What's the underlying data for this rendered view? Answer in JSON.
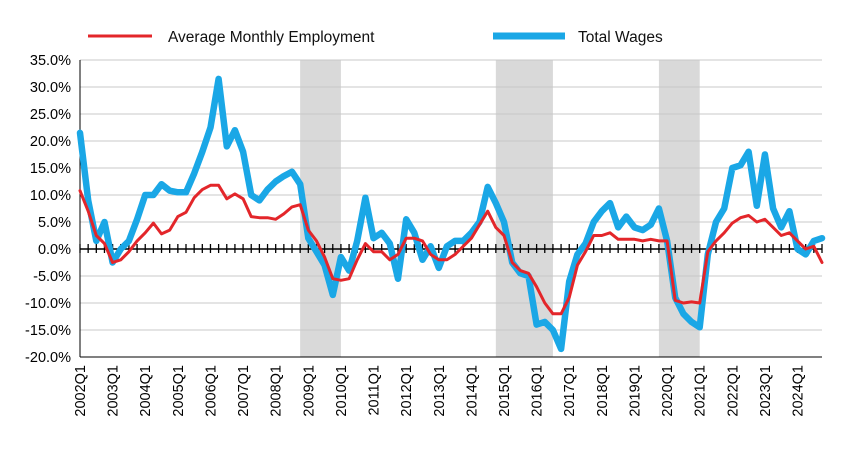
{
  "chart_data": {
    "type": "line",
    "title": "",
    "xlabel": "",
    "ylabel": "",
    "x_tick_labels": [
      "2002Q1",
      "2003Q1",
      "2004Q1",
      "2005Q1",
      "2006Q1",
      "2007Q1",
      "2008Q1",
      "2009Q1",
      "2010Q1",
      "2011Q1",
      "2012Q1",
      "2013Q1",
      "2014Q1",
      "2015Q1",
      "2016Q1",
      "2017Q1",
      "2018Q1",
      "2019Q1",
      "2020Q1",
      "2021Q1",
      "2022Q1",
      "2023Q1",
      "2024Q1"
    ],
    "y_tick_labels": [
      "35.0%",
      "30.0%",
      "25.0%",
      "20.0%",
      "15.0%",
      "10.0%",
      "5.0%",
      "0.0%",
      "-5.0%",
      "-10.0%",
      "-15.0%",
      "-20.0%"
    ],
    "ylim": [
      -20,
      35
    ],
    "grid": "horizontal",
    "legend_position": "top",
    "shaded_periods": [
      {
        "start": "2008Q4",
        "end": "2010Q1"
      },
      {
        "start": "2014Q4",
        "end": "2016Q3"
      },
      {
        "start": "2019Q4",
        "end": "2021Q1"
      }
    ],
    "series": [
      {
        "name": "Average Monthly Employment",
        "color": "#e3262a",
        "values": [
          {
            "x": "2002Q1",
            "y": 10.8
          },
          {
            "x": "2002Q2",
            "y": 7.0
          },
          {
            "x": "2002Q3",
            "y": 2.5
          },
          {
            "x": "2002Q4",
            "y": 1.0
          },
          {
            "x": "2003Q1",
            "y": -2.5
          },
          {
            "x": "2003Q2",
            "y": -2.0
          },
          {
            "x": "2003Q3",
            "y": -0.5
          },
          {
            "x": "2003Q4",
            "y": 1.5
          },
          {
            "x": "2004Q1",
            "y": 3.0
          },
          {
            "x": "2004Q2",
            "y": 4.8
          },
          {
            "x": "2004Q3",
            "y": 2.8
          },
          {
            "x": "2004Q4",
            "y": 3.5
          },
          {
            "x": "2005Q1",
            "y": 6.0
          },
          {
            "x": "2005Q2",
            "y": 6.8
          },
          {
            "x": "2005Q3",
            "y": 9.5
          },
          {
            "x": "2005Q4",
            "y": 11.0
          },
          {
            "x": "2006Q1",
            "y": 11.8
          },
          {
            "x": "2006Q2",
            "y": 11.8
          },
          {
            "x": "2006Q3",
            "y": 9.3
          },
          {
            "x": "2006Q4",
            "y": 10.2
          },
          {
            "x": "2007Q1",
            "y": 9.3
          },
          {
            "x": "2007Q2",
            "y": 6.0
          },
          {
            "x": "2007Q3",
            "y": 5.8
          },
          {
            "x": "2007Q4",
            "y": 5.8
          },
          {
            "x": "2008Q1",
            "y": 5.5
          },
          {
            "x": "2008Q2",
            "y": 6.5
          },
          {
            "x": "2008Q3",
            "y": 7.8
          },
          {
            "x": "2008Q4",
            "y": 8.2
          },
          {
            "x": "2009Q1",
            "y": 3.5
          },
          {
            "x": "2009Q2",
            "y": 1.5
          },
          {
            "x": "2009Q3",
            "y": -1.5
          },
          {
            "x": "2009Q4",
            "y": -5.5
          },
          {
            "x": "2010Q1",
            "y": -5.8
          },
          {
            "x": "2010Q2",
            "y": -5.5
          },
          {
            "x": "2010Q3",
            "y": -2.0
          },
          {
            "x": "2010Q4",
            "y": 1.0
          },
          {
            "x": "2011Q1",
            "y": -0.5
          },
          {
            "x": "2011Q2",
            "y": -0.5
          },
          {
            "x": "2011Q3",
            "y": -2.0
          },
          {
            "x": "2011Q4",
            "y": -1.0
          },
          {
            "x": "2012Q1",
            "y": 2.0
          },
          {
            "x": "2012Q2",
            "y": 2.0
          },
          {
            "x": "2012Q3",
            "y": 1.5
          },
          {
            "x": "2012Q4",
            "y": -1.0
          },
          {
            "x": "2013Q1",
            "y": -2.0
          },
          {
            "x": "2013Q2",
            "y": -2.0
          },
          {
            "x": "2013Q3",
            "y": -1.0
          },
          {
            "x": "2013Q4",
            "y": 0.5
          },
          {
            "x": "2014Q1",
            "y": 2.0
          },
          {
            "x": "2014Q2",
            "y": 4.5
          },
          {
            "x": "2014Q3",
            "y": 7.0
          },
          {
            "x": "2014Q4",
            "y": 4.0
          },
          {
            "x": "2015Q1",
            "y": 2.5
          },
          {
            "x": "2015Q2",
            "y": -2.5
          },
          {
            "x": "2015Q3",
            "y": -4.0
          },
          {
            "x": "2015Q4",
            "y": -4.5
          },
          {
            "x": "2016Q1",
            "y": -7.0
          },
          {
            "x": "2016Q2",
            "y": -10.0
          },
          {
            "x": "2016Q3",
            "y": -12.0
          },
          {
            "x": "2016Q4",
            "y": -12.0
          },
          {
            "x": "2017Q1",
            "y": -9.0
          },
          {
            "x": "2017Q2",
            "y": -3.0
          },
          {
            "x": "2017Q3",
            "y": -0.5
          },
          {
            "x": "2017Q4",
            "y": 2.5
          },
          {
            "x": "2018Q1",
            "y": 2.5
          },
          {
            "x": "2018Q2",
            "y": 3.0
          },
          {
            "x": "2018Q3",
            "y": 1.8
          },
          {
            "x": "2018Q4",
            "y": 1.8
          },
          {
            "x": "2019Q1",
            "y": 1.8
          },
          {
            "x": "2019Q2",
            "y": 1.5
          },
          {
            "x": "2019Q3",
            "y": 1.8
          },
          {
            "x": "2019Q4",
            "y": 1.5
          },
          {
            "x": "2020Q1",
            "y": 1.5
          },
          {
            "x": "2020Q2",
            "y": -9.5
          },
          {
            "x": "2020Q3",
            "y": -10.0
          },
          {
            "x": "2020Q4",
            "y": -9.8
          },
          {
            "x": "2021Q1",
            "y": -10.0
          },
          {
            "x": "2021Q2",
            "y": -0.5
          },
          {
            "x": "2021Q3",
            "y": 1.5
          },
          {
            "x": "2021Q4",
            "y": 3.0
          },
          {
            "x": "2022Q1",
            "y": 4.8
          },
          {
            "x": "2022Q2",
            "y": 5.8
          },
          {
            "x": "2022Q3",
            "y": 6.2
          },
          {
            "x": "2022Q4",
            "y": 5.0
          },
          {
            "x": "2023Q1",
            "y": 5.5
          },
          {
            "x": "2023Q2",
            "y": 4.0
          },
          {
            "x": "2023Q3",
            "y": 2.5
          },
          {
            "x": "2023Q4",
            "y": 3.0
          },
          {
            "x": "2024Q1",
            "y": 1.5
          },
          {
            "x": "2024Q2",
            "y": 0.0
          },
          {
            "x": "2024Q3",
            "y": 0.5
          },
          {
            "x": "2024Q4",
            "y": -2.5
          }
        ]
      },
      {
        "name": "Total Wages",
        "color": "#1aa7e6",
        "values": [
          {
            "x": "2002Q1",
            "y": 21.5
          },
          {
            "x": "2002Q2",
            "y": 9.0
          },
          {
            "x": "2002Q3",
            "y": 1.5
          },
          {
            "x": "2002Q4",
            "y": 5.0
          },
          {
            "x": "2003Q1",
            "y": -2.5
          },
          {
            "x": "2003Q2",
            "y": 0.0
          },
          {
            "x": "2003Q3",
            "y": 1.5
          },
          {
            "x": "2003Q4",
            "y": 5.5
          },
          {
            "x": "2004Q1",
            "y": 10.0
          },
          {
            "x": "2004Q2",
            "y": 10.0
          },
          {
            "x": "2004Q3",
            "y": 12.0
          },
          {
            "x": "2004Q4",
            "y": 10.8
          },
          {
            "x": "2005Q1",
            "y": 10.5
          },
          {
            "x": "2005Q2",
            "y": 10.5
          },
          {
            "x": "2005Q3",
            "y": 14.0
          },
          {
            "x": "2005Q4",
            "y": 18.0
          },
          {
            "x": "2006Q1",
            "y": 22.5
          },
          {
            "x": "2006Q2",
            "y": 31.5
          },
          {
            "x": "2006Q3",
            "y": 19.0
          },
          {
            "x": "2006Q4",
            "y": 22.0
          },
          {
            "x": "2007Q1",
            "y": 18.0
          },
          {
            "x": "2007Q2",
            "y": 10.0
          },
          {
            "x": "2007Q3",
            "y": 9.0
          },
          {
            "x": "2007Q4",
            "y": 11.0
          },
          {
            "x": "2008Q1",
            "y": 12.5
          },
          {
            "x": "2008Q2",
            "y": 13.5
          },
          {
            "x": "2008Q3",
            "y": 14.3
          },
          {
            "x": "2008Q4",
            "y": 12.0
          },
          {
            "x": "2009Q1",
            "y": 2.0
          },
          {
            "x": "2009Q2",
            "y": -0.5
          },
          {
            "x": "2009Q3",
            "y": -3.0
          },
          {
            "x": "2009Q4",
            "y": -8.5
          },
          {
            "x": "2010Q1",
            "y": -1.5
          },
          {
            "x": "2010Q2",
            "y": -4.0
          },
          {
            "x": "2010Q3",
            "y": 1.5
          },
          {
            "x": "2010Q4",
            "y": 9.5
          },
          {
            "x": "2011Q1",
            "y": 2.0
          },
          {
            "x": "2011Q2",
            "y": 3.0
          },
          {
            "x": "2011Q3",
            "y": 1.0
          },
          {
            "x": "2011Q4",
            "y": -5.5
          },
          {
            "x": "2012Q1",
            "y": 5.5
          },
          {
            "x": "2012Q2",
            "y": 3.0
          },
          {
            "x": "2012Q3",
            "y": -2.0
          },
          {
            "x": "2012Q4",
            "y": 0.5
          },
          {
            "x": "2013Q1",
            "y": -3.5
          },
          {
            "x": "2013Q2",
            "y": 0.5
          },
          {
            "x": "2013Q3",
            "y": 1.5
          },
          {
            "x": "2013Q4",
            "y": 1.5
          },
          {
            "x": "2014Q1",
            "y": 3.0
          },
          {
            "x": "2014Q2",
            "y": 5.0
          },
          {
            "x": "2014Q3",
            "y": 11.5
          },
          {
            "x": "2014Q4",
            "y": 8.5
          },
          {
            "x": "2015Q1",
            "y": 5.0
          },
          {
            "x": "2015Q2",
            "y": -2.5
          },
          {
            "x": "2015Q3",
            "y": -4.5
          },
          {
            "x": "2015Q4",
            "y": -5.0
          },
          {
            "x": "2016Q1",
            "y": -14.0
          },
          {
            "x": "2016Q2",
            "y": -13.5
          },
          {
            "x": "2016Q3",
            "y": -15.0
          },
          {
            "x": "2016Q4",
            "y": -18.5
          },
          {
            "x": "2017Q1",
            "y": -6.0
          },
          {
            "x": "2017Q2",
            "y": -1.0
          },
          {
            "x": "2017Q3",
            "y": 1.0
          },
          {
            "x": "2017Q4",
            "y": 5.0
          },
          {
            "x": "2018Q1",
            "y": 7.0
          },
          {
            "x": "2018Q2",
            "y": 8.5
          },
          {
            "x": "2018Q3",
            "y": 4.0
          },
          {
            "x": "2018Q4",
            "y": 6.0
          },
          {
            "x": "2019Q1",
            "y": 4.0
          },
          {
            "x": "2019Q2",
            "y": 3.5
          },
          {
            "x": "2019Q3",
            "y": 4.5
          },
          {
            "x": "2019Q4",
            "y": 7.5
          },
          {
            "x": "2020Q1",
            "y": 1.5
          },
          {
            "x": "2020Q2",
            "y": -9.0
          },
          {
            "x": "2020Q3",
            "y": -12.0
          },
          {
            "x": "2020Q4",
            "y": -13.5
          },
          {
            "x": "2021Q1",
            "y": -14.5
          },
          {
            "x": "2021Q2",
            "y": -1.0
          },
          {
            "x": "2021Q3",
            "y": 5.0
          },
          {
            "x": "2021Q4",
            "y": 7.5
          },
          {
            "x": "2022Q1",
            "y": 15.0
          },
          {
            "x": "2022Q2",
            "y": 15.5
          },
          {
            "x": "2022Q3",
            "y": 18.0
          },
          {
            "x": "2022Q4",
            "y": 8.0
          },
          {
            "x": "2023Q1",
            "y": 17.5
          },
          {
            "x": "2023Q2",
            "y": 7.5
          },
          {
            "x": "2023Q3",
            "y": 4.0
          },
          {
            "x": "2023Q4",
            "y": 7.0
          },
          {
            "x": "2024Q1",
            "y": 0.0
          },
          {
            "x": "2024Q2",
            "y": -1.0
          },
          {
            "x": "2024Q3",
            "y": 1.5
          },
          {
            "x": "2024Q4",
            "y": 2.0
          }
        ]
      }
    ]
  }
}
